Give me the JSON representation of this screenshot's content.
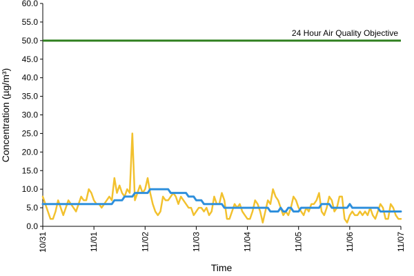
{
  "chart_data": {
    "type": "line",
    "xlabel": "Time",
    "ylabel": "Concentration (µg/m³)",
    "ylim": [
      0,
      60
    ],
    "yticks": [
      "0.0",
      "5.0",
      "10.0",
      "15.0",
      "20.0",
      "25.0",
      "30.0",
      "35.0",
      "40.0",
      "45.0",
      "50.0",
      "55.0",
      "60.0"
    ],
    "xticks": [
      "10/31",
      "11/01",
      "11/02",
      "11/03",
      "11/04",
      "11/05",
      "11/06",
      "11/07"
    ],
    "x_range_days": [
      0,
      7
    ],
    "annotation": "24 Hour Air Quality Objective",
    "objective_value": 50,
    "colors": {
      "hourly": "#f2c12e",
      "average": "#2e8fdc",
      "objective": "#2f7f1e"
    },
    "series": [
      {
        "values": [
          [
            0.0,
            8
          ],
          [
            0.05,
            6
          ],
          [
            0.1,
            4
          ],
          [
            0.15,
            2
          ],
          [
            0.2,
            2
          ],
          [
            0.25,
            4
          ],
          [
            0.3,
            7
          ],
          [
            0.35,
            5
          ],
          [
            0.4,
            3
          ],
          [
            0.45,
            5
          ],
          [
            0.5,
            7
          ],
          [
            0.55,
            6
          ],
          [
            0.6,
            5
          ],
          [
            0.65,
            4
          ],
          [
            0.7,
            6
          ],
          [
            0.75,
            8
          ],
          [
            0.8,
            7
          ],
          [
            0.85,
            7
          ],
          [
            0.9,
            10
          ],
          [
            0.95,
            9
          ],
          [
            1.0,
            7
          ],
          [
            1.05,
            6
          ],
          [
            1.1,
            6
          ],
          [
            1.15,
            5
          ],
          [
            1.2,
            6
          ],
          [
            1.25,
            7
          ],
          [
            1.3,
            8
          ],
          [
            1.35,
            7
          ],
          [
            1.4,
            13
          ],
          [
            1.45,
            9
          ],
          [
            1.5,
            11
          ],
          [
            1.55,
            9
          ],
          [
            1.6,
            8
          ],
          [
            1.65,
            10
          ],
          [
            1.7,
            9
          ],
          [
            1.75,
            25
          ],
          [
            1.8,
            7
          ],
          [
            1.85,
            9
          ],
          [
            1.9,
            11
          ],
          [
            1.95,
            9
          ],
          [
            2.0,
            10
          ],
          [
            2.05,
            13
          ],
          [
            2.1,
            9
          ],
          [
            2.15,
            6
          ],
          [
            2.2,
            4
          ],
          [
            2.25,
            3
          ],
          [
            2.3,
            4
          ],
          [
            2.35,
            8
          ],
          [
            2.4,
            7
          ],
          [
            2.45,
            7
          ],
          [
            2.5,
            8
          ],
          [
            2.55,
            9
          ],
          [
            2.6,
            8
          ],
          [
            2.65,
            6
          ],
          [
            2.7,
            8
          ],
          [
            2.75,
            7
          ],
          [
            2.8,
            6
          ],
          [
            2.85,
            5
          ],
          [
            2.9,
            5
          ],
          [
            2.95,
            3
          ],
          [
            3.0,
            4
          ],
          [
            3.05,
            5
          ],
          [
            3.1,
            5
          ],
          [
            3.15,
            4
          ],
          [
            3.2,
            5
          ],
          [
            3.25,
            3
          ],
          [
            3.3,
            4
          ],
          [
            3.35,
            8
          ],
          [
            3.4,
            6
          ],
          [
            3.45,
            6
          ],
          [
            3.5,
            9
          ],
          [
            3.55,
            7
          ],
          [
            3.6,
            2
          ],
          [
            3.65,
            2
          ],
          [
            3.7,
            4
          ],
          [
            3.75,
            6
          ],
          [
            3.8,
            5
          ],
          [
            3.85,
            6
          ],
          [
            3.9,
            4
          ],
          [
            3.95,
            3
          ],
          [
            4.0,
            2
          ],
          [
            4.05,
            2
          ],
          [
            4.1,
            4
          ],
          [
            4.15,
            7
          ],
          [
            4.2,
            6
          ],
          [
            4.25,
            4
          ],
          [
            4.3,
            1
          ],
          [
            4.35,
            4
          ],
          [
            4.4,
            7
          ],
          [
            4.45,
            6
          ],
          [
            4.5,
            10
          ],
          [
            4.55,
            8
          ],
          [
            4.6,
            7
          ],
          [
            4.65,
            5
          ],
          [
            4.7,
            3
          ],
          [
            4.75,
            4
          ],
          [
            4.8,
            3
          ],
          [
            4.85,
            5
          ],
          [
            4.9,
            8
          ],
          [
            4.95,
            7
          ],
          [
            5.0,
            5
          ],
          [
            5.05,
            4
          ],
          [
            5.1,
            3
          ],
          [
            5.15,
            5
          ],
          [
            5.2,
            4
          ],
          [
            5.25,
            6
          ],
          [
            5.3,
            6
          ],
          [
            5.35,
            7
          ],
          [
            5.4,
            9
          ],
          [
            5.45,
            4
          ],
          [
            5.5,
            3
          ],
          [
            5.55,
            5
          ],
          [
            5.6,
            8
          ],
          [
            5.65,
            7
          ],
          [
            5.7,
            4
          ],
          [
            5.75,
            5
          ],
          [
            5.8,
            8
          ],
          [
            5.85,
            8
          ],
          [
            5.9,
            2
          ],
          [
            5.95,
            1
          ],
          [
            6.0,
            3
          ],
          [
            6.05,
            4
          ],
          [
            6.1,
            3
          ],
          [
            6.15,
            3
          ],
          [
            6.2,
            4
          ],
          [
            6.25,
            3
          ],
          [
            6.3,
            4
          ],
          [
            6.35,
            3
          ],
          [
            6.4,
            5
          ],
          [
            6.45,
            3
          ],
          [
            6.5,
            2
          ],
          [
            6.55,
            4
          ],
          [
            6.6,
            6
          ],
          [
            6.65,
            5
          ],
          [
            6.7,
            2
          ],
          [
            6.75,
            2
          ],
          [
            6.8,
            6
          ],
          [
            6.85,
            5
          ],
          [
            6.9,
            3
          ],
          [
            6.95,
            2
          ],
          [
            7.0,
            2
          ]
        ]
      },
      {
        "values": [
          [
            0.0,
            6
          ],
          [
            1.35,
            6
          ],
          [
            1.4,
            7
          ],
          [
            1.55,
            7
          ],
          [
            1.6,
            8
          ],
          [
            1.75,
            8
          ],
          [
            1.8,
            9
          ],
          [
            2.05,
            9
          ],
          [
            2.1,
            10
          ],
          [
            2.45,
            10
          ],
          [
            2.5,
            9
          ],
          [
            2.8,
            9
          ],
          [
            2.85,
            8
          ],
          [
            2.95,
            8
          ],
          [
            3.0,
            7
          ],
          [
            3.1,
            7
          ],
          [
            3.15,
            6
          ],
          [
            3.5,
            6
          ],
          [
            3.55,
            5
          ],
          [
            4.4,
            5
          ],
          [
            4.45,
            4
          ],
          [
            4.6,
            4
          ],
          [
            4.65,
            5
          ],
          [
            4.7,
            4
          ],
          [
            4.75,
            4
          ],
          [
            4.8,
            5
          ],
          [
            4.85,
            5
          ],
          [
            4.9,
            4
          ],
          [
            5.0,
            4
          ],
          [
            5.05,
            5
          ],
          [
            5.4,
            5
          ],
          [
            5.45,
            6
          ],
          [
            5.6,
            6
          ],
          [
            5.65,
            5
          ],
          [
            5.95,
            5
          ],
          [
            6.0,
            6
          ],
          [
            6.05,
            5
          ],
          [
            6.55,
            5
          ],
          [
            6.6,
            4
          ],
          [
            7.0,
            4
          ]
        ]
      }
    ]
  }
}
